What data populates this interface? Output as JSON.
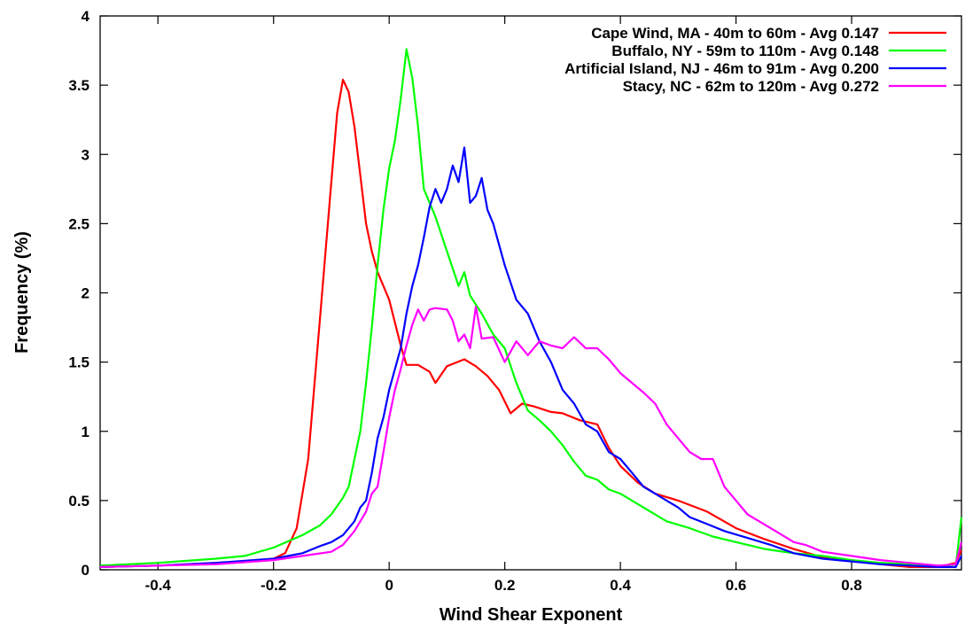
{
  "chart_data": {
    "type": "line",
    "title": "",
    "xlabel": "Wind Shear Exponent",
    "ylabel": "Frequency (%)",
    "xlim": [
      -0.5,
      0.99
    ],
    "ylim": [
      0,
      4
    ],
    "x_ticks": [
      "-0.4",
      "-0.2",
      "0",
      "0.2",
      "0.4",
      "0.6",
      "0.8"
    ],
    "y_ticks": [
      "0",
      "0.5",
      "1",
      "1.5",
      "2",
      "2.5",
      "3",
      "3.5",
      "4"
    ],
    "grid": false,
    "legend_position": "top-right",
    "series": [
      {
        "name": "Cape Wind, MA - 40m to 60m - Avg 0.147",
        "color": "#ff0000",
        "points": [
          [
            -0.5,
            0.02
          ],
          [
            -0.4,
            0.03
          ],
          [
            -0.3,
            0.05
          ],
          [
            -0.25,
            0.06
          ],
          [
            -0.2,
            0.08
          ],
          [
            -0.18,
            0.12
          ],
          [
            -0.16,
            0.3
          ],
          [
            -0.14,
            0.8
          ],
          [
            -0.12,
            1.8
          ],
          [
            -0.1,
            2.8
          ],
          [
            -0.09,
            3.3
          ],
          [
            -0.08,
            3.54
          ],
          [
            -0.07,
            3.45
          ],
          [
            -0.06,
            3.2
          ],
          [
            -0.05,
            2.85
          ],
          [
            -0.04,
            2.5
          ],
          [
            -0.03,
            2.3
          ],
          [
            -0.02,
            2.15
          ],
          [
            0,
            1.95
          ],
          [
            0.02,
            1.62
          ],
          [
            0.03,
            1.48
          ],
          [
            0.05,
            1.48
          ],
          [
            0.07,
            1.43
          ],
          [
            0.08,
            1.35
          ],
          [
            0.1,
            1.47
          ],
          [
            0.13,
            1.52
          ],
          [
            0.15,
            1.47
          ],
          [
            0.17,
            1.4
          ],
          [
            0.19,
            1.3
          ],
          [
            0.21,
            1.13
          ],
          [
            0.23,
            1.2
          ],
          [
            0.25,
            1.18
          ],
          [
            0.28,
            1.14
          ],
          [
            0.3,
            1.13
          ],
          [
            0.33,
            1.08
          ],
          [
            0.36,
            1.05
          ],
          [
            0.38,
            0.88
          ],
          [
            0.4,
            0.75
          ],
          [
            0.43,
            0.63
          ],
          [
            0.46,
            0.55
          ],
          [
            0.5,
            0.5
          ],
          [
            0.55,
            0.42
          ],
          [
            0.6,
            0.3
          ],
          [
            0.65,
            0.22
          ],
          [
            0.7,
            0.15
          ],
          [
            0.75,
            0.09
          ],
          [
            0.8,
            0.07
          ],
          [
            0.85,
            0.04
          ],
          [
            0.9,
            0.02
          ],
          [
            0.95,
            0.02
          ],
          [
            0.98,
            0.05
          ],
          [
            0.99,
            0.14
          ]
        ]
      },
      {
        "name": "Buffalo, NY - 59m to 110m - Avg 0.148",
        "color": "#00ff00",
        "points": [
          [
            -0.5,
            0.03
          ],
          [
            -0.4,
            0.05
          ],
          [
            -0.3,
            0.08
          ],
          [
            -0.25,
            0.1
          ],
          [
            -0.2,
            0.16
          ],
          [
            -0.15,
            0.25
          ],
          [
            -0.12,
            0.32
          ],
          [
            -0.1,
            0.4
          ],
          [
            -0.08,
            0.52
          ],
          [
            -0.07,
            0.6
          ],
          [
            -0.06,
            0.8
          ],
          [
            -0.05,
            1.0
          ],
          [
            -0.04,
            1.35
          ],
          [
            -0.03,
            1.75
          ],
          [
            -0.02,
            2.2
          ],
          [
            -0.01,
            2.6
          ],
          [
            0,
            2.9
          ],
          [
            0.01,
            3.1
          ],
          [
            0.02,
            3.4
          ],
          [
            0.03,
            3.76
          ],
          [
            0.04,
            3.55
          ],
          [
            0.05,
            3.2
          ],
          [
            0.06,
            2.75
          ],
          [
            0.08,
            2.55
          ],
          [
            0.1,
            2.3
          ],
          [
            0.12,
            2.05
          ],
          [
            0.13,
            2.15
          ],
          [
            0.14,
            1.98
          ],
          [
            0.16,
            1.85
          ],
          [
            0.18,
            1.7
          ],
          [
            0.2,
            1.6
          ],
          [
            0.22,
            1.35
          ],
          [
            0.24,
            1.15
          ],
          [
            0.26,
            1.08
          ],
          [
            0.28,
            1.0
          ],
          [
            0.3,
            0.9
          ],
          [
            0.32,
            0.78
          ],
          [
            0.34,
            0.68
          ],
          [
            0.36,
            0.65
          ],
          [
            0.38,
            0.58
          ],
          [
            0.4,
            0.55
          ],
          [
            0.44,
            0.45
          ],
          [
            0.48,
            0.35
          ],
          [
            0.52,
            0.3
          ],
          [
            0.56,
            0.24
          ],
          [
            0.6,
            0.2
          ],
          [
            0.65,
            0.15
          ],
          [
            0.7,
            0.12
          ],
          [
            0.75,
            0.1
          ],
          [
            0.8,
            0.07
          ],
          [
            0.85,
            0.05
          ],
          [
            0.9,
            0.04
          ],
          [
            0.95,
            0.03
          ],
          [
            0.98,
            0.02
          ],
          [
            0.99,
            0.38
          ]
        ]
      },
      {
        "name": "Artificial Island, NJ - 46m to 91m - Avg 0.200",
        "color": "#0000ff",
        "points": [
          [
            -0.5,
            0.02
          ],
          [
            -0.4,
            0.03
          ],
          [
            -0.3,
            0.05
          ],
          [
            -0.2,
            0.08
          ],
          [
            -0.15,
            0.12
          ],
          [
            -0.12,
            0.17
          ],
          [
            -0.1,
            0.2
          ],
          [
            -0.08,
            0.25
          ],
          [
            -0.06,
            0.35
          ],
          [
            -0.05,
            0.45
          ],
          [
            -0.04,
            0.5
          ],
          [
            -0.03,
            0.7
          ],
          [
            -0.02,
            0.95
          ],
          [
            -0.01,
            1.1
          ],
          [
            0,
            1.3
          ],
          [
            0.02,
            1.6
          ],
          [
            0.03,
            1.85
          ],
          [
            0.04,
            2.05
          ],
          [
            0.05,
            2.2
          ],
          [
            0.06,
            2.4
          ],
          [
            0.07,
            2.62
          ],
          [
            0.08,
            2.75
          ],
          [
            0.09,
            2.65
          ],
          [
            0.1,
            2.75
          ],
          [
            0.11,
            2.92
          ],
          [
            0.12,
            2.8
          ],
          [
            0.13,
            3.05
          ],
          [
            0.14,
            2.65
          ],
          [
            0.15,
            2.7
          ],
          [
            0.16,
            2.83
          ],
          [
            0.17,
            2.6
          ],
          [
            0.18,
            2.5
          ],
          [
            0.2,
            2.2
          ],
          [
            0.22,
            1.95
          ],
          [
            0.24,
            1.85
          ],
          [
            0.26,
            1.65
          ],
          [
            0.28,
            1.5
          ],
          [
            0.3,
            1.3
          ],
          [
            0.32,
            1.2
          ],
          [
            0.34,
            1.05
          ],
          [
            0.36,
            1.0
          ],
          [
            0.38,
            0.85
          ],
          [
            0.4,
            0.8
          ],
          [
            0.42,
            0.7
          ],
          [
            0.44,
            0.6
          ],
          [
            0.46,
            0.55
          ],
          [
            0.48,
            0.5
          ],
          [
            0.5,
            0.45
          ],
          [
            0.52,
            0.38
          ],
          [
            0.55,
            0.33
          ],
          [
            0.58,
            0.28
          ],
          [
            0.62,
            0.23
          ],
          [
            0.66,
            0.18
          ],
          [
            0.7,
            0.12
          ],
          [
            0.75,
            0.08
          ],
          [
            0.8,
            0.06
          ],
          [
            0.85,
            0.04
          ],
          [
            0.9,
            0.03
          ],
          [
            0.95,
            0.02
          ],
          [
            0.98,
            0.02
          ],
          [
            0.99,
            0.1
          ]
        ]
      },
      {
        "name": "Stacy, NC - 62m to 120m - Avg 0.272",
        "color": "#ff00ff",
        "points": [
          [
            -0.5,
            0.02
          ],
          [
            -0.4,
            0.03
          ],
          [
            -0.3,
            0.04
          ],
          [
            -0.2,
            0.07
          ],
          [
            -0.15,
            0.1
          ],
          [
            -0.1,
            0.13
          ],
          [
            -0.08,
            0.18
          ],
          [
            -0.06,
            0.28
          ],
          [
            -0.05,
            0.35
          ],
          [
            -0.04,
            0.42
          ],
          [
            -0.03,
            0.55
          ],
          [
            -0.02,
            0.6
          ],
          [
            -0.01,
            0.85
          ],
          [
            0,
            1.1
          ],
          [
            0.01,
            1.3
          ],
          [
            0.02,
            1.45
          ],
          [
            0.03,
            1.62
          ],
          [
            0.04,
            1.77
          ],
          [
            0.05,
            1.88
          ],
          [
            0.06,
            1.8
          ],
          [
            0.07,
            1.88
          ],
          [
            0.08,
            1.89
          ],
          [
            0.1,
            1.88
          ],
          [
            0.11,
            1.8
          ],
          [
            0.12,
            1.65
          ],
          [
            0.13,
            1.7
          ],
          [
            0.14,
            1.6
          ],
          [
            0.15,
            1.9
          ],
          [
            0.16,
            1.67
          ],
          [
            0.18,
            1.68
          ],
          [
            0.2,
            1.5
          ],
          [
            0.22,
            1.65
          ],
          [
            0.24,
            1.55
          ],
          [
            0.26,
            1.65
          ],
          [
            0.28,
            1.62
          ],
          [
            0.3,
            1.6
          ],
          [
            0.32,
            1.68
          ],
          [
            0.34,
            1.6
          ],
          [
            0.36,
            1.6
          ],
          [
            0.38,
            1.52
          ],
          [
            0.4,
            1.42
          ],
          [
            0.42,
            1.35
          ],
          [
            0.44,
            1.28
          ],
          [
            0.46,
            1.2
          ],
          [
            0.48,
            1.05
          ],
          [
            0.5,
            0.95
          ],
          [
            0.52,
            0.85
          ],
          [
            0.54,
            0.8
          ],
          [
            0.56,
            0.8
          ],
          [
            0.58,
            0.6
          ],
          [
            0.6,
            0.5
          ],
          [
            0.62,
            0.4
          ],
          [
            0.64,
            0.35
          ],
          [
            0.66,
            0.3
          ],
          [
            0.68,
            0.25
          ],
          [
            0.7,
            0.2
          ],
          [
            0.72,
            0.18
          ],
          [
            0.75,
            0.13
          ],
          [
            0.8,
            0.1
          ],
          [
            0.85,
            0.07
          ],
          [
            0.9,
            0.05
          ],
          [
            0.95,
            0.03
          ],
          [
            0.98,
            0.04
          ],
          [
            0.99,
            0.2
          ]
        ]
      }
    ]
  }
}
